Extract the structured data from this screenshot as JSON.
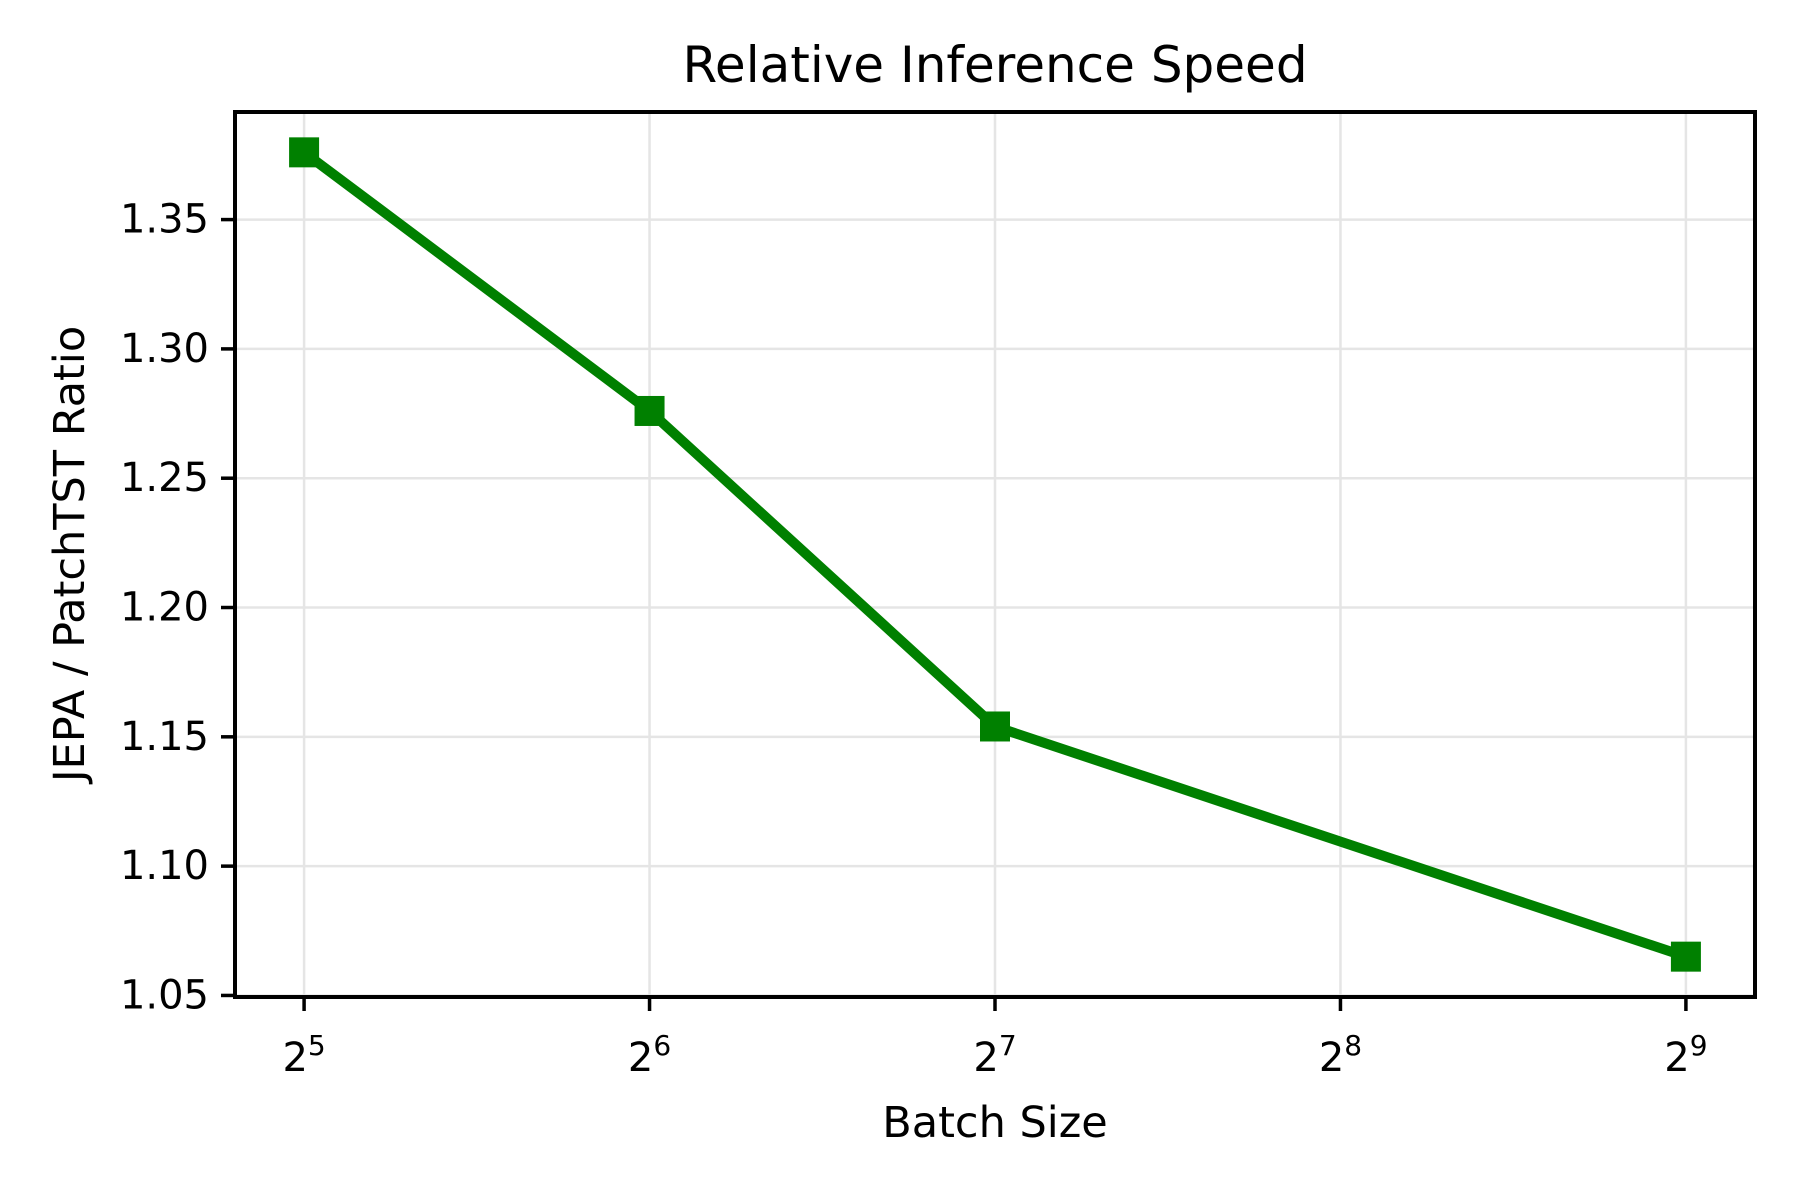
{
  "chart_data": {
    "type": "line",
    "title": "Relative Inference Speed",
    "xlabel": "Batch Size",
    "ylabel": "JEPA / PatchTST Ratio",
    "x": [
      32,
      64,
      128,
      512
    ],
    "y": [
      1.376,
      1.276,
      1.154,
      1.065
    ],
    "x_scale": "log2",
    "xticks": [
      {
        "base": "2",
        "exp": "5",
        "value": 32
      },
      {
        "base": "2",
        "exp": "6",
        "value": 64
      },
      {
        "base": "2",
        "exp": "7",
        "value": 128
      },
      {
        "base": "2",
        "exp": "8",
        "value": 256
      },
      {
        "base": "2",
        "exp": "9",
        "value": 512
      }
    ],
    "yticks": [
      {
        "label": "1.05",
        "value": 1.05
      },
      {
        "label": "1.10",
        "value": 1.1
      },
      {
        "label": "1.15",
        "value": 1.15
      },
      {
        "label": "1.20",
        "value": 1.2
      },
      {
        "label": "1.25",
        "value": 1.25
      },
      {
        "label": "1.30",
        "value": 1.3
      },
      {
        "label": "1.35",
        "value": 1.35
      }
    ],
    "xlim_log2": [
      4.8,
      9.2
    ],
    "ylim": [
      1.0494,
      1.3916
    ],
    "grid": true,
    "legend": false,
    "marker": "square",
    "colors": {
      "line": "#008000",
      "grid": "#e5e5e5",
      "spine": "#000000",
      "text": "#000000",
      "background": "#ffffff"
    }
  }
}
